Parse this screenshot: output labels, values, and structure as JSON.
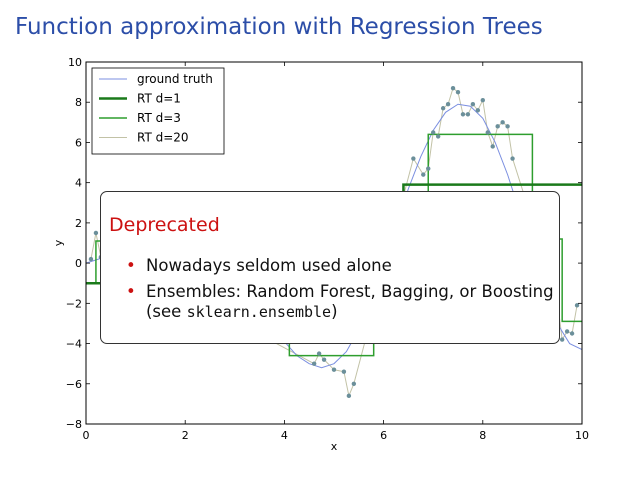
{
  "slide": {
    "title": "Function approximation with Regression Trees"
  },
  "callout": {
    "title": "Deprecated",
    "bullets": [
      {
        "text": "Nowadays seldom used alone"
      },
      {
        "line1": "Ensembles: Random Forest, Bagging, or Boosting",
        "line2_prefix": "(see ",
        "line2_code": "sklearn.ensemble",
        "line2_suffix": ")"
      }
    ],
    "bullet_glyph": "•"
  },
  "chart_data": {
    "type": "line",
    "xlabel": "x",
    "ylabel": "y",
    "xlim": [
      0,
      10
    ],
    "ylim": [
      -8,
      10
    ],
    "xticks": [
      "0",
      "2",
      "4",
      "6",
      "8",
      "10"
    ],
    "yticks": [
      "−8",
      "−6",
      "−4",
      "−2",
      "0",
      "2",
      "4",
      "6",
      "8",
      "10"
    ],
    "legend_position": "top-left",
    "grid": false,
    "series": [
      {
        "name": "ground truth",
        "color": "#7b8fe0",
        "kind": "curve",
        "x": [
          0,
          0.25,
          0.5,
          0.75,
          1,
          1.25,
          1.5,
          1.75,
          2,
          2.25,
          2.5,
          2.75,
          3,
          3.25,
          3.5,
          3.75,
          4,
          4.25,
          4.5,
          4.75,
          5,
          5.25,
          5.5,
          5.75,
          6,
          6.25,
          6.5,
          6.75,
          7,
          7.25,
          7.5,
          7.75,
          8,
          8.25,
          8.5,
          8.75,
          9,
          9.25,
          9.5,
          9.75,
          10
        ],
        "y": [
          0,
          0.2,
          0.4,
          0.6,
          0.8,
          1,
          1.1,
          1.1,
          1,
          0.8,
          0.5,
          0.1,
          -0.5,
          -1.3,
          -2.2,
          -3.1,
          -3.9,
          -4.6,
          -5,
          -5.2,
          -5,
          -4.4,
          -3.3,
          -1.8,
          0,
          1.9,
          3.7,
          5.3,
          6.6,
          7.5,
          7.9,
          7.8,
          7.2,
          6,
          4.4,
          2.5,
          0.5,
          -1.4,
          -3,
          -4,
          -4.3
        ]
      },
      {
        "name": "RT d=1",
        "color": "#1a7a1a",
        "kind": "step",
        "width": 2.5,
        "x": [
          0,
          6.4,
          6.4,
          10
        ],
        "y": [
          -1,
          -1,
          3.9,
          3.9
        ]
      },
      {
        "name": "RT d=3",
        "color": "#2e9e2e",
        "kind": "step",
        "width": 1.5,
        "x": [
          0,
          0.2,
          0.2,
          2.2,
          2.2,
          3.1,
          3.1,
          4.1,
          4.1,
          5.8,
          5.8,
          6.4,
          6.4,
          6.9,
          6.9,
          9.0,
          9.0,
          9.6,
          9.6,
          10
        ],
        "y": [
          -1,
          -1,
          1.1,
          1.1,
          0.5,
          0.5,
          -1.5,
          -1.5,
          -4.6,
          -4.6,
          -2.5,
          -2.5,
          2.5,
          2.5,
          6.4,
          6.4,
          1.2,
          1.2,
          -2.9,
          -2.9
        ]
      },
      {
        "name": "RT d=20",
        "color": "#c2c2a6",
        "kind": "curve",
        "width": 1,
        "x": [
          0.1,
          0.2,
          0.3,
          0.5,
          4.6,
          4.7,
          4.8,
          5.0,
          5.2,
          5.3,
          5.4,
          6.6,
          6.8,
          6.9,
          7.0,
          7.1,
          7.2,
          7.3,
          7.4,
          7.5,
          7.6,
          7.7,
          7.8,
          7.9,
          8.0,
          8.1,
          8.2,
          8.3,
          8.4,
          8.5,
          8.6,
          9.5,
          9.6,
          9.7,
          9.8,
          9.9
        ],
        "y": [
          0.2,
          1.5,
          0.3,
          0.4,
          -5.0,
          -4.5,
          -4.8,
          -5.3,
          -5.4,
          -6.6,
          -6.0,
          5.2,
          4.4,
          4.7,
          6.5,
          6.3,
          7.7,
          7.9,
          8.7,
          8.5,
          7.4,
          7.4,
          7.9,
          7.6,
          8.1,
          6.5,
          5.8,
          6.8,
          7.0,
          6.8,
          5.2,
          -1.8,
          -3.8,
          -3.4,
          -3.5,
          -2.1
        ]
      },
      {
        "name": "samples",
        "color": "#6b8f9a",
        "kind": "points",
        "x": [
          0.1,
          0.2,
          0.3,
          0.5,
          4.6,
          4.7,
          4.8,
          5.0,
          5.2,
          5.3,
          5.4,
          6.6,
          6.8,
          6.9,
          7.0,
          7.1,
          7.2,
          7.3,
          7.4,
          7.5,
          7.6,
          7.7,
          7.8,
          7.9,
          8.0,
          8.1,
          8.2,
          8.3,
          8.4,
          8.5,
          8.6,
          9.5,
          9.6,
          9.7,
          9.8,
          9.9
        ],
        "y": [
          0.2,
          1.5,
          0.3,
          0.4,
          -5.0,
          -4.5,
          -4.8,
          -5.3,
          -5.4,
          -6.6,
          -6.0,
          5.2,
          4.4,
          4.7,
          6.5,
          6.3,
          7.7,
          7.9,
          8.7,
          8.5,
          7.4,
          7.4,
          7.9,
          7.6,
          8.1,
          6.5,
          5.8,
          6.8,
          7.0,
          6.8,
          5.2,
          -1.8,
          -3.8,
          -3.4,
          -3.5,
          -2.1
        ]
      }
    ]
  }
}
